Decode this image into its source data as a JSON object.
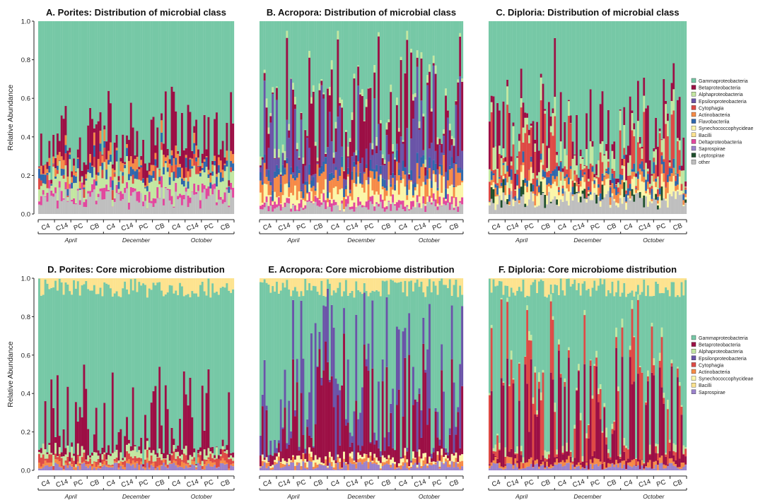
{
  "colors": {
    "Gammaproteobacteria": "#76c8a6",
    "Betaproteobacteria": "#9c0f45",
    "Alphaproteobacteria": "#c3e7a1",
    "Epsilonproteobacteria": "#6a54a8",
    "Cytophagia": "#de4a45",
    "Actinobacteria": "#f68a47",
    "Flavobacteriia": "#2e67ad",
    "Synechococcophycideae": "#fbf6a9",
    "Bacilli": "#fde38f",
    "Deltaproteobacteria": "#e2479e",
    "Saprospirae": "#9b82cc",
    "Leptospirae": "#1e4f2c",
    "other": "#bfbfbf"
  },
  "legends": [
    {
      "panel_row": 0,
      "entries": [
        "Gammaproteobacteria",
        "Betaproteobacteria",
        "Alphaproteobacteria",
        "Epsilonproteobacteria",
        "Cytophagia",
        "Actinobacteria",
        "Flavobacteriia",
        "Synechococcophycideae",
        "Bacilli",
        "Deltaproteobacteria",
        "Saprospirae",
        "Leptospirae",
        "other"
      ]
    },
    {
      "panel_row": 1,
      "entries": [
        "Gammaproteobacteria",
        "Betaproteobacteria",
        "Alphaproteobacteria",
        "Epsilonproteobacteria",
        "Cytophagia",
        "Actinobacteria",
        "Synechococcophycideae",
        "Bacilli",
        "Saprospirae"
      ]
    }
  ],
  "chart_data": [
    {
      "id": "A",
      "type": "bar",
      "stacked": true,
      "title": "A. Porites: Distribution of microbial class",
      "ylabel": "Relative Abundance",
      "ylim": [
        0,
        1
      ],
      "yticks": [
        "0.0",
        "0.2",
        "0.4",
        "0.6",
        "0.8",
        "1.0"
      ],
      "n_samples": 96,
      "sites": [
        "C4",
        "C14",
        "PC",
        "CB"
      ],
      "months": [
        "April",
        "December",
        "October"
      ],
      "series": [
        "other",
        "Deltaproteobacteria",
        "Alphaproteobacteria",
        "Cytophagia",
        "Flavobacteriia",
        "Actinobacteria",
        "Betaproteobacteria",
        "Gammaproteobacteria"
      ],
      "profile": {
        "gamma_mean": 0.58,
        "beta_mean": 0.12,
        "alpha_mean": 0.1,
        "other_mean": 0.06
      },
      "grid": false,
      "legend": "right"
    },
    {
      "id": "B",
      "type": "bar",
      "stacked": true,
      "title": "B. Acropora: Distribution of microbial class",
      "ylabel": "",
      "ylim": [
        0,
        1
      ],
      "yticks": [],
      "n_samples": 100,
      "sites": [
        "C4",
        "C14",
        "PC",
        "CB",
        "C4",
        "C14",
        "PC",
        "CB",
        "C4",
        "C14",
        "PC",
        "CB"
      ],
      "months": [
        "April",
        "December",
        "October"
      ],
      "series": [
        "other",
        "Deltaproteobacteria",
        "Synechococcophycideae",
        "Actinobacteria",
        "Flavobacteriia",
        "Epsilonproteobacteria",
        "Betaproteobacteria",
        "Alphaproteobacteria",
        "Gammaproteobacteria"
      ],
      "profile": {
        "gamma_mean": 0.3,
        "beta_mean": 0.22,
        "epsilon_mean": 0.2,
        "other_mean": 0.04
      },
      "grid": false,
      "legend": "right"
    },
    {
      "id": "C",
      "type": "bar",
      "stacked": true,
      "title": "C. Diploria: Distribution of microbial class",
      "ylabel": "",
      "ylim": [
        0,
        1
      ],
      "yticks": [],
      "n_samples": 100,
      "sites": [
        "C4",
        "C14",
        "PC",
        "CB",
        "C4",
        "C14",
        "PC",
        "CB",
        "C4",
        "C14",
        "PC",
        "CB"
      ],
      "months": [
        "April",
        "December",
        "October"
      ],
      "series": [
        "other",
        "Leptospirae",
        "Synechococcophycideae",
        "Actinobacteria",
        "Flavobacteriia",
        "Cytophagia",
        "Alphaproteobacteria",
        "Betaproteobacteria",
        "Gammaproteobacteria"
      ],
      "profile": {
        "gamma_mean": 0.4,
        "beta_mean": 0.12,
        "cyto_mean": 0.15,
        "other_mean": 0.06
      },
      "grid": false,
      "legend": "right"
    },
    {
      "id": "D",
      "type": "bar",
      "stacked": true,
      "title": "D. Porites: Core microbiome distribution",
      "ylabel": "Relative Abundance",
      "ylim": [
        0,
        1
      ],
      "yticks": [
        "0.0",
        "0.2",
        "0.4",
        "0.6",
        "0.8",
        "1.0"
      ],
      "n_samples": 96,
      "sites": [
        "C4",
        "C14",
        "PC",
        "CB"
      ],
      "months": [
        "April",
        "December",
        "October"
      ],
      "series": [
        "Saprospirae",
        "Actinobacteria",
        "Cytophagia",
        "Alphaproteobacteria",
        "Betaproteobacteria",
        "Gammaproteobacteria",
        "Bacilli"
      ],
      "profile": {
        "gamma_mean": 0.75,
        "beta_mean": 0.1,
        "bacilli_mean": 0.04
      },
      "grid": false,
      "legend": "right"
    },
    {
      "id": "E",
      "type": "bar",
      "stacked": true,
      "title": "E. Acropora: Core microbiome distribution",
      "ylabel": "",
      "ylim": [
        0,
        1
      ],
      "yticks": [],
      "n_samples": 100,
      "sites": [
        "C4",
        "C14",
        "PC",
        "CB",
        "C4",
        "C14",
        "PC",
        "CB",
        "C4",
        "C14",
        "PC",
        "CB"
      ],
      "months": [
        "April",
        "December",
        "October"
      ],
      "series": [
        "Saprospirae",
        "Actinobacteria",
        "Synechococcophycideae",
        "Betaproteobacteria",
        "Epsilonproteobacteria",
        "Gammaproteobacteria",
        "Bacilli"
      ],
      "profile": {
        "gamma_mean": 0.35,
        "beta_mean": 0.3,
        "epsilon_mean": 0.2,
        "bacilli_mean": 0.05
      },
      "grid": false,
      "legend": "right"
    },
    {
      "id": "F",
      "type": "bar",
      "stacked": true,
      "title": "F. Diploria: Core microbiome distribution",
      "ylabel": "",
      "ylim": [
        0,
        1
      ],
      "yticks": [],
      "n_samples": 100,
      "sites": [
        "C4",
        "C14",
        "PC",
        "CB",
        "C4",
        "C14",
        "PC",
        "CB",
        "C4",
        "C14",
        "PC",
        "CB"
      ],
      "months": [
        "April",
        "December",
        "October"
      ],
      "series": [
        "Saprospirae",
        "Actinobacteria",
        "Betaproteobacteria",
        "Cytophagia",
        "Alphaproteobacteria",
        "Gammaproteobacteria",
        "Bacilli"
      ],
      "profile": {
        "gamma_mean": 0.5,
        "beta_mean": 0.2,
        "cyto_mean": 0.15,
        "bacilli_mean": 0.03
      },
      "grid": false,
      "legend": "right"
    }
  ]
}
